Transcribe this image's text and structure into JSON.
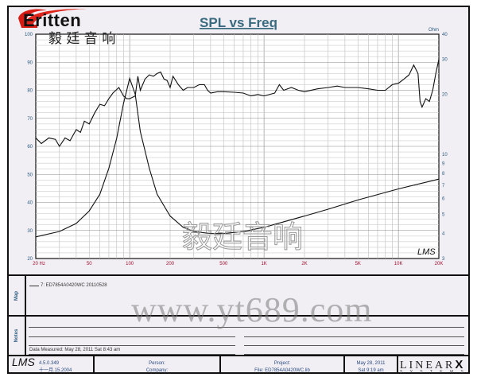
{
  "logo": {
    "brand": "Eritten",
    "chinese": "毅 廷 音 响"
  },
  "watermarks": {
    "chart": "毅廷音响",
    "url": "www.yt689.com"
  },
  "chart_data": {
    "type": "line",
    "title": "SPL vs Freq",
    "x_scale": "log",
    "xlim": [
      20,
      20000
    ],
    "x_ticks": [
      {
        "v": 20,
        "label": "20  Hz"
      },
      {
        "v": 50,
        "label": "50"
      },
      {
        "v": 100,
        "label": "100"
      },
      {
        "v": 200,
        "label": "200"
      },
      {
        "v": 500,
        "label": "500"
      },
      {
        "v": 1000,
        "label": "1K"
      },
      {
        "v": 2000,
        "label": "2K"
      },
      {
        "v": 5000,
        "label": "5K"
      },
      {
        "v": 10000,
        "label": "10K"
      },
      {
        "v": 20000,
        "label": "20K"
      }
    ],
    "y_left": {
      "lim": [
        20,
        100
      ],
      "ticks": [
        20,
        30,
        40,
        50,
        60,
        70,
        80,
        90,
        100
      ]
    },
    "y_right": {
      "label": "Ohm",
      "scale": "log",
      "lim": [
        3,
        40
      ],
      "ticks": [
        3,
        4,
        5,
        6,
        7,
        8,
        9,
        10,
        20,
        30,
        40
      ]
    },
    "grid": true,
    "corner_label": "LMS",
    "series": [
      {
        "axis": "left",
        "x": [
          20,
          22,
          25,
          28,
          30,
          33,
          36,
          40,
          43,
          46,
          50,
          55,
          60,
          65,
          70,
          75,
          83,
          90,
          95,
          100,
          110,
          115,
          120,
          130,
          140,
          150,
          160,
          170,
          180,
          190,
          200,
          210,
          230,
          250,
          270,
          300,
          330,
          360,
          380,
          400,
          450,
          500,
          600,
          700,
          800,
          900,
          1000,
          1200,
          1300,
          1400,
          1600,
          1800,
          2000,
          2500,
          3000,
          3500,
          4000,
          5000,
          6000,
          7000,
          8000,
          9000,
          10000,
          11000,
          12000,
          13000,
          14000,
          14500,
          15000,
          16000,
          17000,
          18000,
          19000,
          20000
        ],
        "y": [
          63,
          61,
          63,
          62.5,
          60,
          63,
          62,
          66,
          65,
          69,
          68,
          72,
          75,
          74.5,
          77,
          79,
          81,
          78,
          77,
          77,
          78,
          85,
          80,
          84,
          85.5,
          85,
          86,
          86.5,
          84,
          83.5,
          81,
          85,
          82,
          80,
          81,
          81,
          82,
          82,
          80,
          79,
          79.5,
          79.5,
          79.3,
          79,
          78,
          78.5,
          78,
          79,
          82,
          80,
          81,
          80,
          79.5,
          80.5,
          81,
          81.5,
          81,
          81,
          80.5,
          80,
          80,
          82,
          82.5,
          84,
          85.5,
          89,
          86,
          76,
          74,
          77,
          76,
          80,
          86,
          91
        ]
      },
      {
        "axis": "right",
        "x": [
          20,
          30,
          40,
          50,
          60,
          70,
          80,
          90,
          100,
          110,
          120,
          140,
          160,
          200,
          250,
          300,
          400,
          500,
          700,
          1000,
          2000,
          3000,
          5000,
          10000,
          20000
        ],
        "y": [
          3.85,
          4.1,
          4.5,
          5.2,
          6.3,
          8.5,
          12,
          18,
          24,
          20,
          13,
          8.5,
          6.3,
          4.9,
          4.3,
          4.1,
          4.0,
          4.0,
          4.1,
          4.3,
          4.9,
          5.3,
          5.9,
          6.7,
          7.5
        ]
      }
    ]
  },
  "map": {
    "label": "Map",
    "legend": "7: ED7854A0420WC  20110528",
    "line_color": "#333333"
  },
  "notes": {
    "label": "Notes",
    "measured": "Data Measured: May 28, 2011  Sat  8:43 am"
  },
  "footer": {
    "lms_logo": "LMS",
    "version": "4.5.0.349",
    "build_date": "十一月.15.2004",
    "person": "Person:",
    "company": "Company:",
    "project": "Project:",
    "file": "File: ED7854A0420WC.lib",
    "date": "May 28, 2011",
    "time": "Sat  9:19 am",
    "brand": "LINEAR",
    "brand_x": "X",
    "brand_sub": "S Y S T E M S"
  },
  "colors": {
    "background": "#f1eff3",
    "title": "#3a6a80",
    "axis_left": "#2a5a80",
    "axis_x": "#a01030"
  }
}
